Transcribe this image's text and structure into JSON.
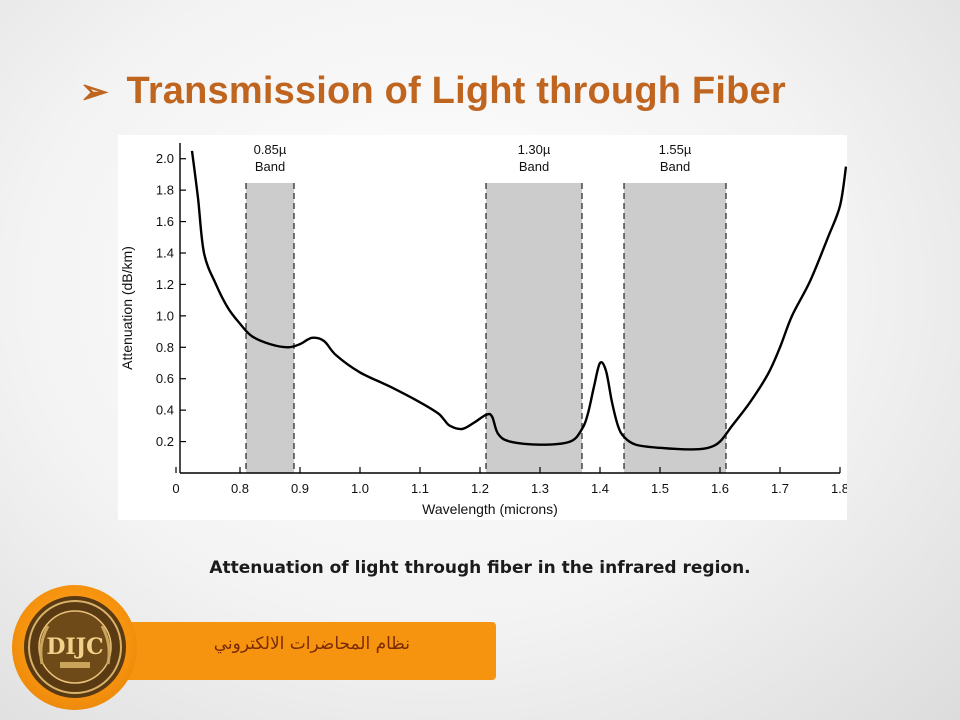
{
  "slide": {
    "title": "Transmission of Light through Fiber",
    "bullet_icon": "arrow-bullet-icon",
    "caption": "Attenuation of light through fiber in the infrared region.",
    "footer_text": "نظام المحاضرات الالكتروني",
    "logo": {
      "icon": "university-seal-icon",
      "text": "DIJC"
    },
    "accent_color": "#c0651f",
    "footer_color": "#f7940f"
  },
  "chart_data": {
    "type": "line",
    "title": "",
    "xlabel": "Wavelength (microns)",
    "ylabel": "Attenuation (dB/km)",
    "x_ticks": [
      "0",
      "0.8",
      "0.9",
      "1.0",
      "1.1",
      "1.2",
      "1.3",
      "1.4",
      "1.5",
      "1.6",
      "1.7",
      "1.8"
    ],
    "y_ticks": [
      "0.2",
      "0.4",
      "0.6",
      "0.8",
      "1.0",
      "1.2",
      "1.4",
      "1.6",
      "1.8",
      "2.0"
    ],
    "xlim": [
      0.7,
      1.8
    ],
    "ylim": [
      0.0,
      2.1
    ],
    "x_axis_break": "tick 0 shown at left, axis continues from 0.8",
    "bands": [
      {
        "label_line1": "0.85µ",
        "label_line2": "Band",
        "x_start": 0.81,
        "x_end": 0.89,
        "fill": "#cccccc"
      },
      {
        "label_line1": "1.30µ",
        "label_line2": "Band",
        "x_start": 1.21,
        "x_end": 1.37,
        "fill": "#cccccc"
      },
      {
        "label_line1": "1.55µ",
        "label_line2": "Band",
        "x_start": 1.44,
        "x_end": 1.61,
        "fill": "#cccccc"
      }
    ],
    "series": [
      {
        "x": [
          0.72,
          0.73,
          0.74,
          0.76,
          0.78,
          0.8,
          0.82,
          0.85,
          0.88,
          0.9,
          0.92,
          0.94,
          0.96,
          1.0,
          1.05,
          1.1,
          1.13,
          1.14,
          1.15,
          1.17,
          1.19,
          1.21,
          1.22,
          1.23,
          1.25,
          1.3,
          1.35,
          1.37,
          1.38,
          1.39,
          1.4,
          1.41,
          1.42,
          1.43,
          1.44,
          1.46,
          1.5,
          1.55,
          1.58,
          1.6,
          1.62,
          1.65,
          1.68,
          1.7,
          1.72,
          1.75,
          1.78,
          1.8,
          1.81
        ],
        "y": [
          2.05,
          1.75,
          1.4,
          1.2,
          1.05,
          0.95,
          0.87,
          0.82,
          0.8,
          0.82,
          0.86,
          0.84,
          0.75,
          0.64,
          0.55,
          0.45,
          0.38,
          0.34,
          0.3,
          0.28,
          0.32,
          0.37,
          0.36,
          0.25,
          0.2,
          0.18,
          0.2,
          0.28,
          0.38,
          0.55,
          0.7,
          0.65,
          0.45,
          0.3,
          0.23,
          0.18,
          0.16,
          0.15,
          0.16,
          0.2,
          0.3,
          0.45,
          0.63,
          0.8,
          1.0,
          1.22,
          1.5,
          1.7,
          1.95
        ]
      }
    ],
    "grid": false,
    "line_color": "#000000"
  }
}
